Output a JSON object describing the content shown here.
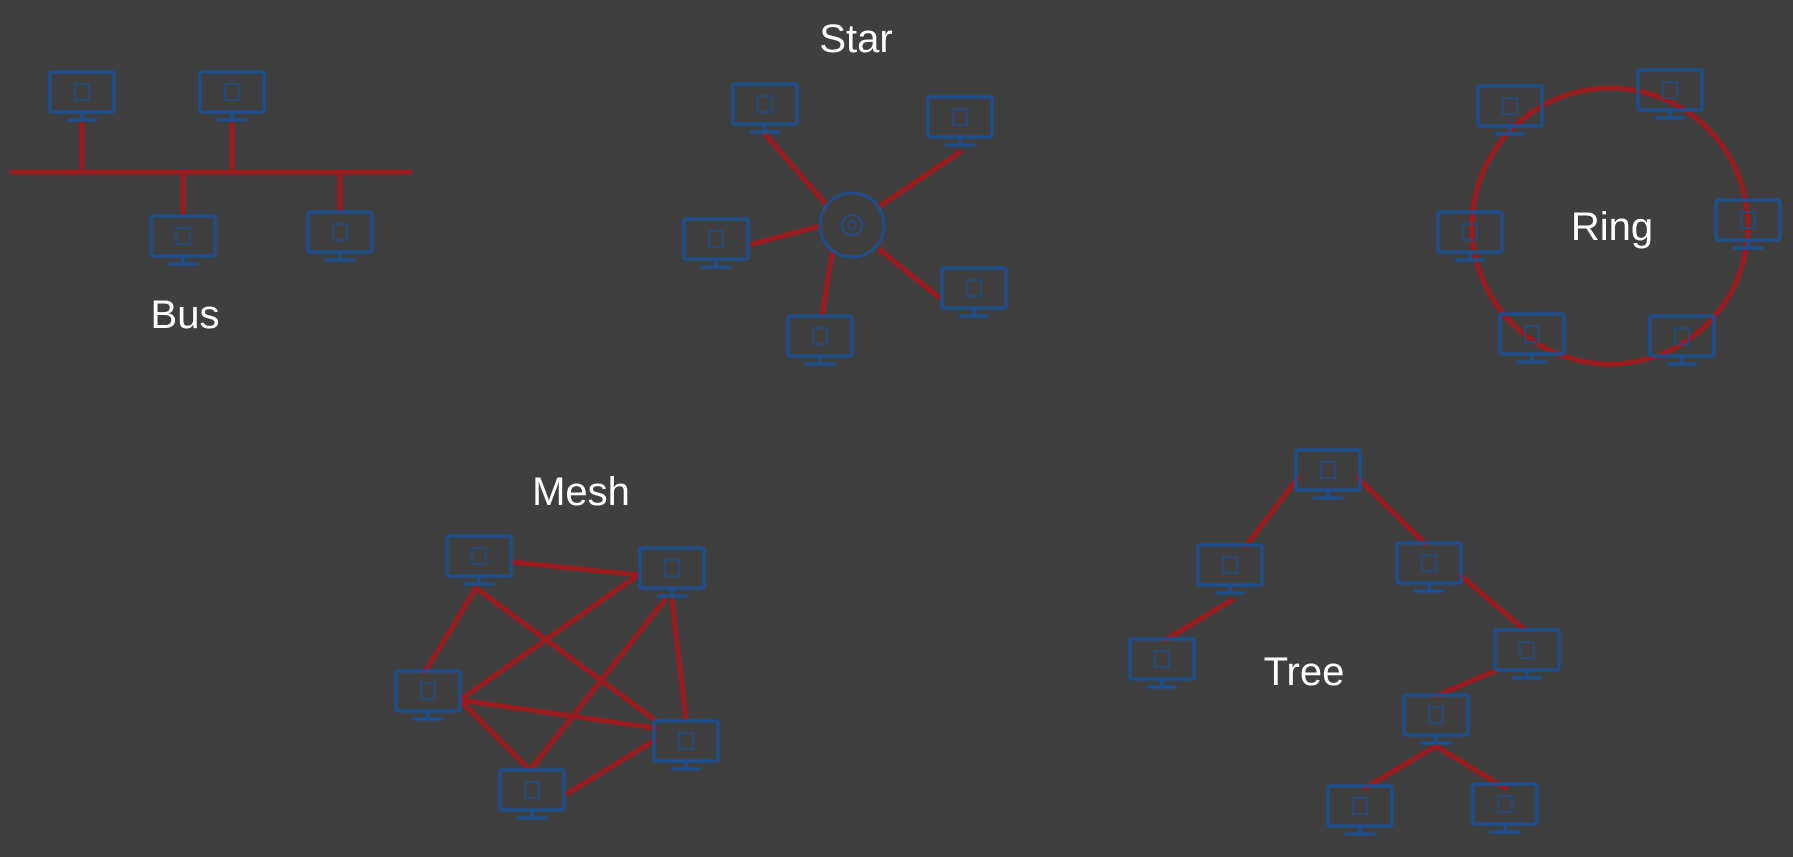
{
  "colors": {
    "background": "#3f3f3f",
    "link": "#9b1b1f",
    "device": "#1f4e8c",
    "label": "#ffffff"
  },
  "icons": {
    "computer": "computer-monitor-icon",
    "hub": "hub-icon"
  },
  "diagrams": {
    "bus": {
      "label": "Bus"
    },
    "star": {
      "label": "Star"
    },
    "ring": {
      "label": "Ring"
    },
    "mesh": {
      "label": "Mesh"
    },
    "tree": {
      "label": "Tree"
    }
  }
}
